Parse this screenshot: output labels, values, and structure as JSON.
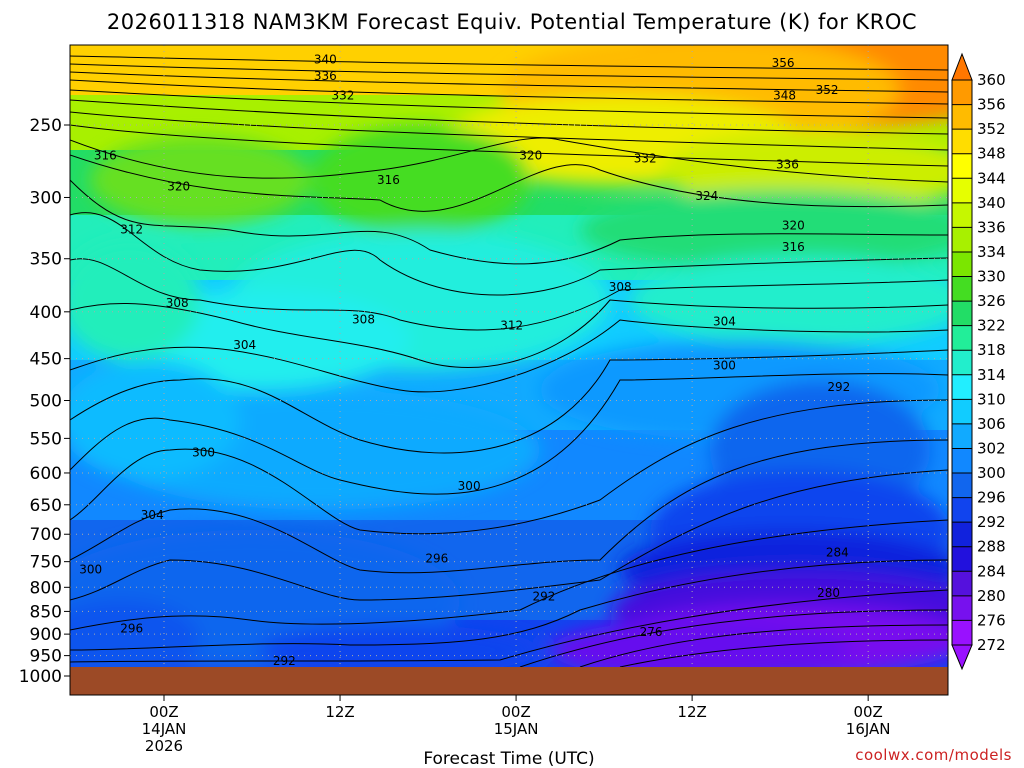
{
  "title": "2026011318 NAM3KM Forecast Equiv. Potential Temperature (K) for KROC",
  "x_axis_label": "Forecast Time (UTC)",
  "credit": "coolwx.com/models",
  "colors": {
    "ground": "#9c4a26",
    "contour": "#000000",
    "grid": "#aaaaaa",
    "credit": "#cc2222"
  },
  "chart_data": {
    "type": "heatmap",
    "title": "2026011318 NAM3KM Forecast Equiv. Potential Temperature (K) for KROC",
    "xlabel": "Forecast Time (UTC)",
    "ylabel": "",
    "y_scale": "log-pressure",
    "y_range_hpa": [
      1000,
      200
    ],
    "y_ticks": [
      250,
      300,
      350,
      400,
      450,
      500,
      550,
      600,
      650,
      700,
      750,
      800,
      850,
      900,
      950,
      1000
    ],
    "x_ticks": [
      {
        "hour": 6,
        "lines": [
          "00Z",
          "14JAN",
          "2026"
        ]
      },
      {
        "hour": 18,
        "lines": [
          "12Z"
        ]
      },
      {
        "hour": 30,
        "lines": [
          "00Z",
          "15JAN"
        ]
      },
      {
        "hour": 42,
        "lines": [
          "12Z"
        ]
      },
      {
        "hour": 54,
        "lines": [
          "00Z",
          "16JAN"
        ]
      }
    ],
    "x_range_hours": [
      0,
      60
    ],
    "grid": "dotted",
    "colorbar": {
      "placement": "right",
      "levels": [
        360,
        356,
        352,
        348,
        344,
        340,
        336,
        334,
        330,
        326,
        322,
        318,
        314,
        310,
        306,
        302,
        300,
        296,
        292,
        288,
        284,
        280,
        276,
        272
      ],
      "colors": [
        "#ff7700",
        "#ff9a00",
        "#ffbb00",
        "#ffdd00",
        "#ffff00",
        "#e6ff00",
        "#c6f700",
        "#a8f000",
        "#7be600",
        "#44dd22",
        "#22dd66",
        "#22ee99",
        "#22eecc",
        "#22eeff",
        "#11ccff",
        "#11aaff",
        "#1188ff",
        "#1166ee",
        "#1144ee",
        "#1122dd",
        "#2211dd",
        "#5511dd",
        "#7711ee",
        "#9911ff"
      ]
    },
    "contour_labels": [
      {
        "value": 340,
        "hour": 17.0,
        "hpa": 212
      },
      {
        "value": 336,
        "hour": 17.0,
        "hpa": 221
      },
      {
        "value": 332,
        "hour": 18.2,
        "hpa": 232
      },
      {
        "value": 316,
        "hour": 2.0,
        "hpa": 270
      },
      {
        "value": 320,
        "hour": 7.0,
        "hpa": 292
      },
      {
        "value": 312,
        "hour": 3.8,
        "hpa": 325
      },
      {
        "value": 316,
        "hour": 21.3,
        "hpa": 287
      },
      {
        "value": 320,
        "hour": 31.0,
        "hpa": 270
      },
      {
        "value": 332,
        "hour": 38.8,
        "hpa": 272
      },
      {
        "value": 336,
        "hour": 48.5,
        "hpa": 276
      },
      {
        "value": 348,
        "hour": 48.3,
        "hpa": 232
      },
      {
        "value": 352,
        "hour": 51.2,
        "hpa": 229
      },
      {
        "value": 356,
        "hour": 48.2,
        "hpa": 214
      },
      {
        "value": 324,
        "hour": 43.0,
        "hpa": 299
      },
      {
        "value": 320,
        "hour": 48.9,
        "hpa": 322
      },
      {
        "value": 316,
        "hour": 48.9,
        "hpa": 340
      },
      {
        "value": 308,
        "hour": 6.9,
        "hpa": 391
      },
      {
        "value": 304,
        "hour": 11.5,
        "hpa": 435
      },
      {
        "value": 308,
        "hour": 19.6,
        "hpa": 408
      },
      {
        "value": 312,
        "hour": 29.7,
        "hpa": 414
      },
      {
        "value": 308,
        "hour": 37.1,
        "hpa": 376
      },
      {
        "value": 304,
        "hour": 44.2,
        "hpa": 410
      },
      {
        "value": 300,
        "hour": 44.2,
        "hpa": 458
      },
      {
        "value": 292,
        "hour": 52.0,
        "hpa": 483
      },
      {
        "value": 300,
        "hour": 8.7,
        "hpa": 570
      },
      {
        "value": 300,
        "hour": 26.8,
        "hpa": 620
      },
      {
        "value": 304,
        "hour": 5.2,
        "hpa": 667
      },
      {
        "value": 296,
        "hour": 24.6,
        "hpa": 744
      },
      {
        "value": 292,
        "hour": 31.9,
        "hpa": 819
      },
      {
        "value": 284,
        "hour": 51.9,
        "hpa": 733
      },
      {
        "value": 280,
        "hour": 51.3,
        "hpa": 812
      },
      {
        "value": 276,
        "hour": 39.2,
        "hpa": 895
      },
      {
        "value": 300,
        "hour": 1.0,
        "hpa": 765
      },
      {
        "value": 296,
        "hour": 3.8,
        "hpa": 887
      },
      {
        "value": 292,
        "hour": 14.2,
        "hpa": 963
      }
    ]
  }
}
